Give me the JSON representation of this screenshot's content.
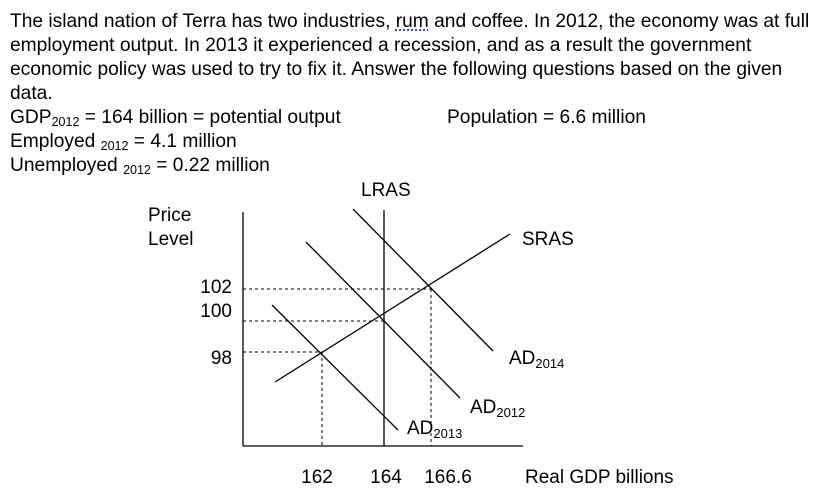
{
  "intro": {
    "part1": "The island nation of Terra has two industries, ",
    "rum": "rum",
    "part2": " and coffee.  In 2012, the economy was at full employment output.  In 2013 it experienced a recession, and as a result the government economic policy was used to try to fix it.  Answer the following questions based on the given data."
  },
  "facts": {
    "gdp_label": "GDP",
    "gdp_sub": "2012",
    "gdp_text": " = 164 billion = potential output",
    "population": "Population = 6.6 million",
    "employed_label": "Employed ",
    "employed_sub": "2012",
    "employed_text": " = 4.1 million",
    "unemployed_label": "Unemployed ",
    "unemployed_sub": "2012",
    "unemployed_text": " = 0.22 million"
  },
  "chart_data": {
    "type": "line",
    "ylabel": [
      "Price",
      "Level"
    ],
    "xlabel": "Real GDP billions",
    "x_ticks": [
      "162",
      "164",
      "166.6"
    ],
    "y_ticks": [
      "102",
      "100",
      "98"
    ],
    "lines": [
      {
        "name": "LRAS",
        "label": "LRAS",
        "sub": ""
      },
      {
        "name": "SRAS",
        "label": "SRAS",
        "sub": ""
      },
      {
        "name": "AD2014",
        "label": "AD",
        "sub": "2014"
      },
      {
        "name": "AD2012",
        "label": "AD",
        "sub": "2012"
      },
      {
        "name": "AD2013",
        "label": "AD",
        "sub": "2013"
      }
    ],
    "equilibria": [
      {
        "x": 162,
        "y": 98
      },
      {
        "x": 164,
        "y": 100
      },
      {
        "x": 166.6,
        "y": 102
      }
    ]
  }
}
